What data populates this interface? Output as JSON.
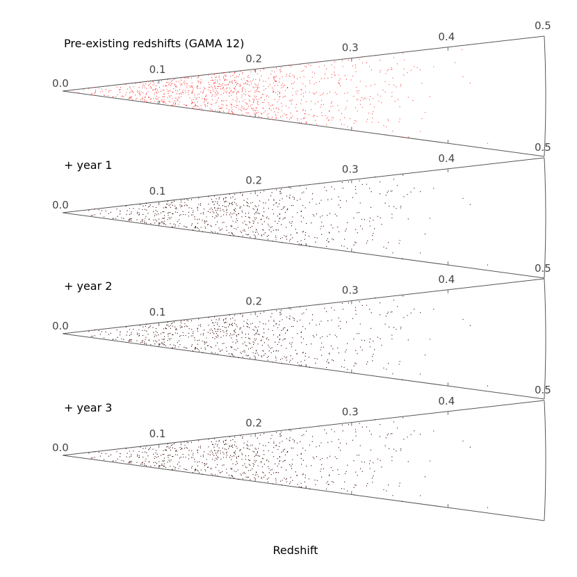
{
  "chart_data": {
    "type": "scatter",
    "subtype": "redshift-cone",
    "xlabel": "Redshift",
    "zlim": [
      0.0,
      0.5
    ],
    "ticks": [
      "0.0",
      "0.1",
      "0.2",
      "0.3",
      "0.4",
      "0.5"
    ],
    "panels": [
      {
        "title": "Pre-existing redshifts (GAMA 12)",
        "new_color": "#ff0000",
        "has_prior": false
      },
      {
        "title": "+ year 1",
        "new_color": "#000000",
        "prior_color": "#cc0000",
        "has_prior": true
      },
      {
        "title": "+ year 2",
        "new_color": "#000000",
        "prior_color": "#cc0000",
        "has_prior": true
      },
      {
        "title": "+ year 3",
        "new_color": "#000000",
        "prior_color": "#cc0000",
        "has_prior": true
      }
    ]
  }
}
